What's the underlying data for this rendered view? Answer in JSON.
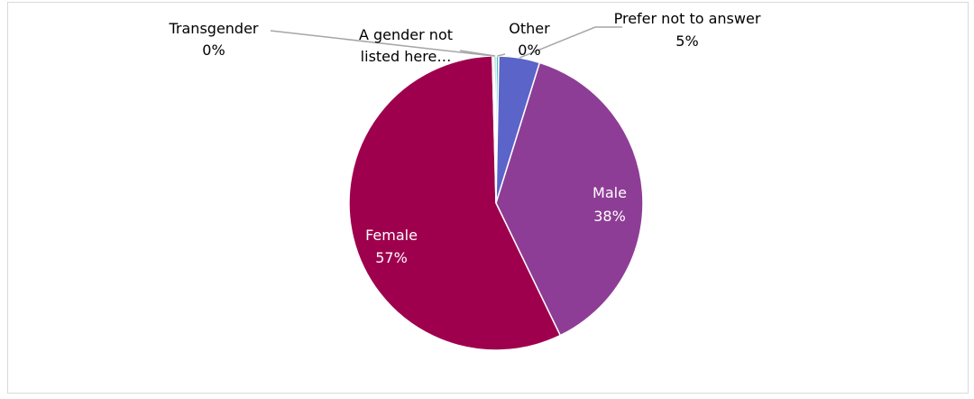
{
  "chart_data": {
    "type": "pie",
    "slices": [
      {
        "label": "Other",
        "value": 0.3,
        "pct_label": "0%",
        "color": "#4fbfbd"
      },
      {
        "label": "Prefer not to answer",
        "value": 4.5,
        "pct_label": "5%",
        "color": "#5b64c8"
      },
      {
        "label": "Male",
        "value": 38.0,
        "pct_label": "38%",
        "color": "#8e3d96"
      },
      {
        "label": "Female",
        "value": 56.8,
        "pct_label": "57%",
        "color": "#9e004e"
      },
      {
        "label": "Transgender",
        "value": 0.2,
        "pct_label": "0%",
        "color": "#c8e07a"
      },
      {
        "label": "A gender not listed here…",
        "label_lines": [
          "A gender not",
          "listed here…"
        ],
        "value": 0.2,
        "pct_label": "",
        "color": "#2f8fc0"
      }
    ],
    "data_labels": {
      "inside_text_color": "#ffffff",
      "outside_text_color": "#000000",
      "leader_line_color": "#a6a6a6"
    }
  }
}
